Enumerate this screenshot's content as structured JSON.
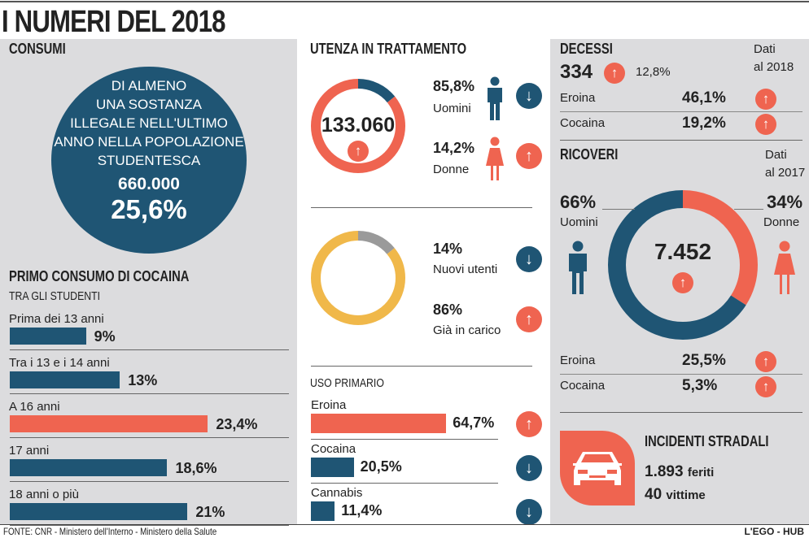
{
  "title": "I NUMERI DEL 2018",
  "colors": {
    "navy": "#1f5574",
    "coral": "#ef6450",
    "yellow": "#f0b84a",
    "gray": "#9a9a9a",
    "panel": "#dcdcde"
  },
  "consumi": {
    "heading": "CONSUMI",
    "circle_lines": [
      "DI ALMENO",
      "UNA SOSTANZA",
      "ILLEGALE NELL'ULTIMO",
      "ANNO NELLA POPOLAZIONE",
      "STUDENTESCA"
    ],
    "count": "660.000",
    "percent": "25,6%"
  },
  "cocaina": {
    "heading": "PRIMO CONSUMO DI COCAINA",
    "subheading": "TRA GLI STUDENTI"
  },
  "utenza": {
    "heading": "UTENZA IN TRATTAMENTO",
    "total": "133.060",
    "men_pct": "85,8%",
    "men_label": "Uomini",
    "women_pct": "14,2%",
    "women_label": "Donne",
    "new_pct": "14%",
    "new_label": "Nuovi utenti",
    "old_pct": "86%",
    "old_label": "Già in carico"
  },
  "uso": {
    "heading": "USO PRIMARIO"
  },
  "decessi": {
    "heading": "DECESSI",
    "total": "334",
    "change": "12,8%",
    "note_line1": "Dati",
    "note_line2": "al 2018",
    "rows": [
      {
        "label": "Eroina",
        "value": "46,1%"
      },
      {
        "label": "Cocaina",
        "value": "19,2%"
      }
    ]
  },
  "ricoveri": {
    "heading": "RICOVERI",
    "note_line1": "Dati",
    "note_line2": "al 2017",
    "total": "7.452",
    "men_pct": "66%",
    "men_label": "Uomini",
    "women_pct": "34%",
    "women_label": "Donne",
    "rows": [
      {
        "label": "Eroina",
        "value": "25,5%"
      },
      {
        "label": "Cocaina",
        "value": "5,3%"
      }
    ]
  },
  "incidenti": {
    "heading": "INCIDENTI STRADALI",
    "injured": "1.893",
    "injured_label": "feriti",
    "victims": "40",
    "victims_label": "vittime"
  },
  "footer": {
    "source": "FONTE: CNR - Ministero dell'Interno - Ministero della Salute",
    "brand": "L'EGO - HUB"
  },
  "chart_data": [
    {
      "type": "bar",
      "title": "PRIMO CONSUMO DI COCAINA",
      "subtitle": "TRA GLI STUDENTI",
      "categories": [
        "Prima dei 13 anni",
        "Tra i 13 e i 14 anni",
        "A 16 anni",
        "17 anni",
        "18 anni o più"
      ],
      "values": [
        9,
        13,
        23.4,
        18.6,
        21
      ],
      "labels": [
        "9%",
        "13%",
        "23,4%",
        "18,6%",
        "21%"
      ],
      "highlight": "A 16 anni"
    },
    {
      "type": "bar",
      "title": "USO PRIMARIO",
      "categories": [
        "Eroina",
        "Cocaina",
        "Cannabis"
      ],
      "values": [
        64.7,
        20.5,
        11.4
      ],
      "labels": [
        "64,7%",
        "20,5%",
        "11,4%"
      ],
      "trend": [
        "up",
        "down",
        "down"
      ]
    },
    {
      "type": "pie",
      "categories": [
        "Uomini",
        "Donne"
      ],
      "values": [
        85.8,
        14.2
      ],
      "trend": [
        "down",
        "up"
      ]
    },
    {
      "type": "pie",
      "categories": [
        "Nuovi utenti",
        "Già in carico"
      ],
      "values": [
        14,
        86
      ],
      "trend": [
        "down",
        "up"
      ]
    },
    {
      "type": "pie",
      "categories": [
        "Uomini",
        "Donne"
      ],
      "values": [
        66,
        34
      ]
    }
  ]
}
